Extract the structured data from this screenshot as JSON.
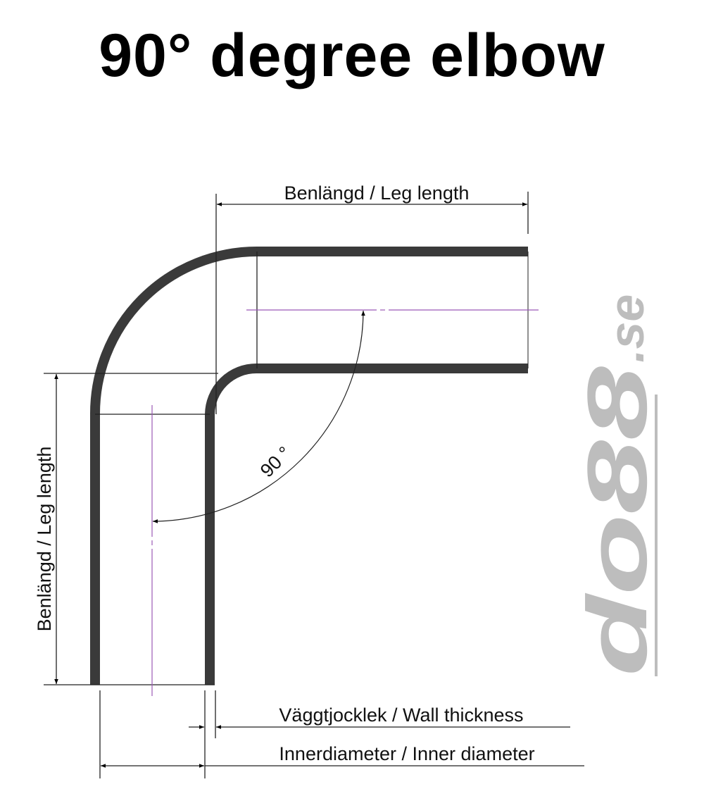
{
  "title": "90° degree elbow",
  "labels": {
    "leg_length_top": "Benlängd / Leg length",
    "leg_length_left": "Benlängd / Leg length",
    "angle": "90 °",
    "wall_thickness": "Väggtjocklek / Wall thickness",
    "inner_diameter": "Innerdiameter / Inner diameter"
  },
  "logo": {
    "text_main": "do88",
    "text_suffix": ".se"
  },
  "colors": {
    "pipe": "#3a3a3a",
    "centerline": "#9b59b6",
    "logo": "#bdbdbd"
  }
}
